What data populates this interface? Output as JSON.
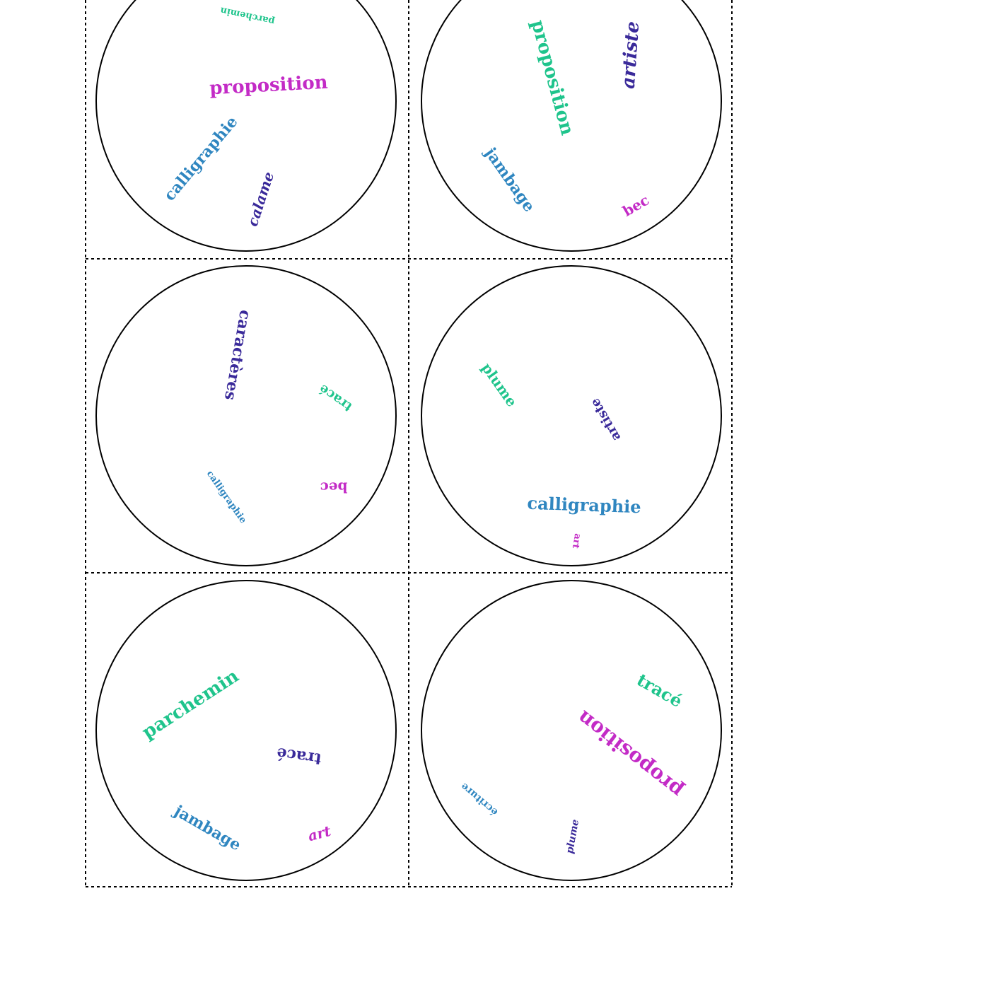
{
  "cards": [
    {
      "words": [
        {
          "text": "parchemin",
          "color": "#1fc48c"
        },
        {
          "text": "proposition",
          "color": "#c32bc6"
        },
        {
          "text": "calligraphie",
          "color": "#2f86c0"
        },
        {
          "text": "calame",
          "color": "#3a2a9a"
        }
      ]
    },
    {
      "words": [
        {
          "text": "proposition",
          "color": "#1fc48c"
        },
        {
          "text": "artiste",
          "color": "#3a2a9a"
        },
        {
          "text": "jambage",
          "color": "#2f86c0"
        },
        {
          "text": "bec",
          "color": "#c32bc6"
        }
      ]
    },
    {
      "words": [
        {
          "text": "caractères",
          "color": "#3a2a9a"
        },
        {
          "text": "tracé",
          "color": "#1fc48c"
        },
        {
          "text": "calligraphie",
          "color": "#2f86c0"
        },
        {
          "text": "bec",
          "color": "#c32bc6"
        }
      ]
    },
    {
      "words": [
        {
          "text": "plume",
          "color": "#1fc48c"
        },
        {
          "text": "artiste",
          "color": "#3a2a9a"
        },
        {
          "text": "calligraphie",
          "color": "#2f86c0"
        },
        {
          "text": "art",
          "color": "#c32bc6"
        }
      ]
    },
    {
      "words": [
        {
          "text": "parchemin",
          "color": "#1fc48c"
        },
        {
          "text": "tracé",
          "color": "#3a2a9a"
        },
        {
          "text": "jambage",
          "color": "#2f86c0"
        },
        {
          "text": "art",
          "color": "#c32bc6"
        }
      ]
    },
    {
      "words": [
        {
          "text": "tracé",
          "color": "#1fc48c"
        },
        {
          "text": "proposition",
          "color": "#c32bc6"
        },
        {
          "text": "écriture",
          "color": "#2f86c0"
        },
        {
          "text": "plume",
          "color": "#3a2a9a"
        }
      ]
    }
  ]
}
